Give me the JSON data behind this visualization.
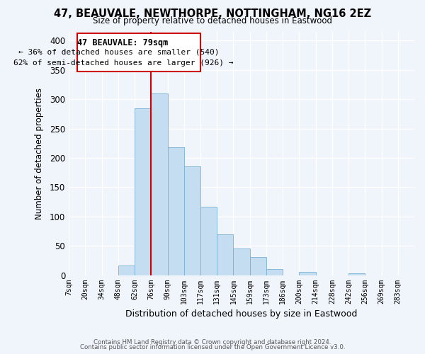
{
  "title1": "47, BEAUVALE, NEWTHORPE, NOTTINGHAM, NG16 2EZ",
  "title2": "Size of property relative to detached houses in Eastwood",
  "xlabel": "Distribution of detached houses by size in Eastwood",
  "ylabel": "Number of detached properties",
  "bar_color": "#c5ddf0",
  "bar_edge_color": "#7ab0d4",
  "tick_labels": [
    "7sqm",
    "20sqm",
    "34sqm",
    "48sqm",
    "62sqm",
    "76sqm",
    "90sqm",
    "103sqm",
    "117sqm",
    "131sqm",
    "145sqm",
    "159sqm",
    "173sqm",
    "186sqm",
    "200sqm",
    "214sqm",
    "228sqm",
    "242sqm",
    "256sqm",
    "269sqm",
    "283sqm"
  ],
  "bar_heights": [
    0,
    0,
    0,
    16,
    285,
    310,
    218,
    185,
    117,
    70,
    45,
    31,
    10,
    0,
    5,
    0,
    0,
    3,
    0,
    0,
    0
  ],
  "ylim": [
    0,
    415
  ],
  "yticks": [
    0,
    50,
    100,
    150,
    200,
    250,
    300,
    350,
    400
  ],
  "vline_label": "47 BEAUVALE: 79sqm",
  "annotation1": "← 36% of detached houses are smaller (540)",
  "annotation2": "62% of semi-detached houses are larger (926) →",
  "box_color": "#ffffff",
  "box_edge_color": "#cc0000",
  "vline_color": "#cc0000",
  "footer1": "Contains HM Land Registry data © Crown copyright and database right 2024.",
  "footer2": "Contains public sector information licensed under the Open Government Licence v3.0.",
  "bg_color": "#f0f4fb",
  "plot_bg_color": "#f0f4fb",
  "grid_color": "#ffffff"
}
